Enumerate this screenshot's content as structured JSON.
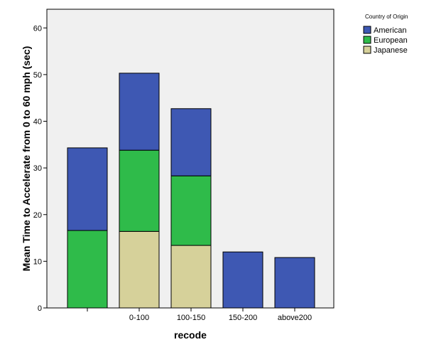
{
  "chart_data": {
    "type": "bar",
    "stacked": true,
    "categories": [
      "",
      "0-100",
      "100-150",
      "150-200",
      "above200"
    ],
    "series": [
      {
        "name": "Japanese",
        "color": "#d6d19a",
        "values": [
          0,
          16.4,
          13.4,
          0,
          0
        ]
      },
      {
        "name": "European",
        "color": "#2fbb4a",
        "values": [
          16.6,
          17.4,
          14.9,
          0,
          0
        ]
      },
      {
        "name": "American",
        "color": "#3e58b3",
        "values": [
          17.7,
          16.5,
          14.4,
          12.0,
          10.8
        ]
      }
    ],
    "xlabel": "recode",
    "ylabel": "Mean Time to Accelerate from 0 to 60 mph (sec)",
    "ylim": [
      0,
      64
    ],
    "yticks": [
      0,
      10,
      20,
      30,
      40,
      50,
      60
    ],
    "grid": false,
    "plot_background": "#f0f0f0",
    "legend": {
      "title": "Country of Origin",
      "position": "top-right",
      "items": [
        "American",
        "European",
        "Japanese"
      ]
    }
  }
}
